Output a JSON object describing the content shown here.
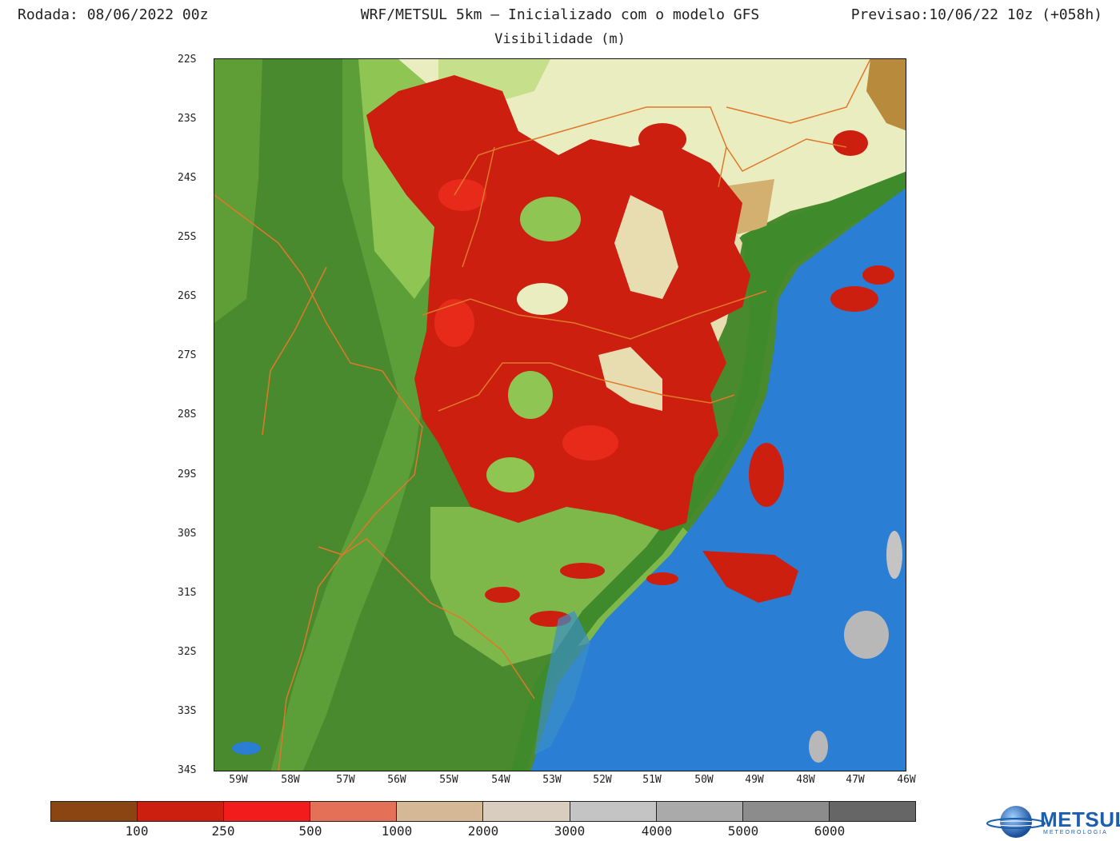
{
  "header": {
    "run": "Rodada: 08/06/2022 00z",
    "title": "WRF/METSUL 5km – Inicializado com o modelo GFS",
    "forecast": "Previsao:10/06/22 10z (+058h)",
    "subtitle": "Visibilidade (m)"
  },
  "map": {
    "lat_labels": [
      "22S",
      "23S",
      "24S",
      "25S",
      "26S",
      "27S",
      "28S",
      "29S",
      "30S",
      "31S",
      "32S",
      "33S",
      "34S"
    ],
    "lon_labels": [
      "59W",
      "58W",
      "57W",
      "56W",
      "55W",
      "54W",
      "53W",
      "52W",
      "51W",
      "50W",
      "49W",
      "48W",
      "47W",
      "46W"
    ],
    "lat_range": [
      -34,
      -22
    ],
    "lon_range": [
      -59.6,
      -46.0
    ],
    "colors": {
      "ocean": "#2a7fd4",
      "land_far": "#4a8a2e",
      "land_mid": "#5c9e37",
      "land_light": "#8fc553",
      "land_pale": "#c6df8a",
      "pale_yellow": "#e9edc0",
      "fog_red": "#cc1f10",
      "fog_bright_red": "#e82a1a",
      "border_lines": "#e0782a"
    }
  },
  "colorbar": {
    "colors": [
      "#8b4513",
      "#cc1f10",
      "#f21c1c",
      "#e57058",
      "#d5b896",
      "#d9cdbf",
      "#c4c4c4",
      "#aaaaaa",
      "#8c8c8c",
      "#666666"
    ],
    "labels": [
      "100",
      "250",
      "500",
      "1000",
      "2000",
      "3000",
      "4000",
      "5000",
      "6000"
    ]
  },
  "logo": {
    "name": "METSUL",
    "tagline": "METEOROLOGIA"
  }
}
